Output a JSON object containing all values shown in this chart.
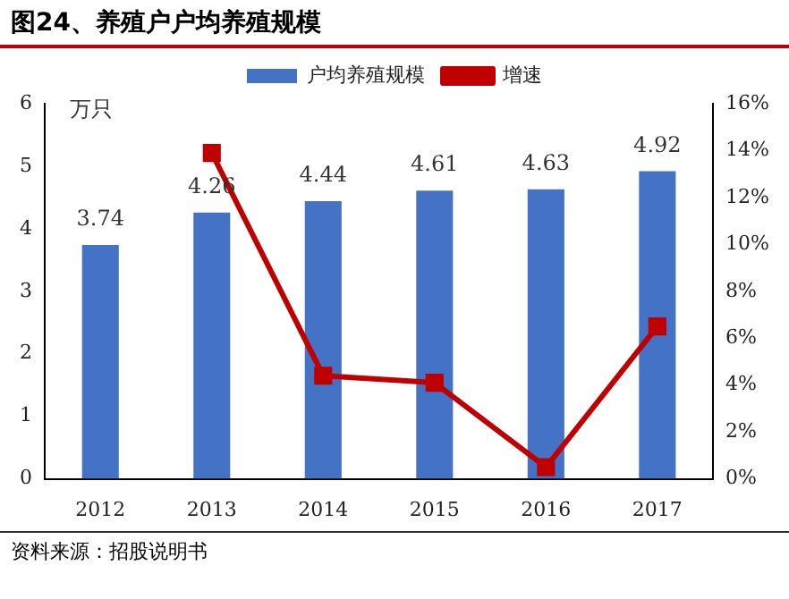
{
  "chart_data": {
    "type": "bar",
    "title": "图24、养殖户户均养殖规模",
    "ylabel": "万只",
    "annotations": [
      "资料来源：招股说明书"
    ],
    "categories": [
      "2012",
      "2013",
      "2014",
      "2015",
      "2016",
      "2017"
    ],
    "series": [
      {
        "name": "户均养殖规模",
        "color": "#4472c4",
        "values": [
          3.74,
          4.26,
          4.44,
          4.61,
          4.63,
          4.92
        ],
        "value_labels": [
          "3.74",
          "4.26",
          "4.44",
          "4.61",
          "4.63",
          "4.92"
        ]
      },
      {
        "name": "增速",
        "type": "line",
        "axis": "y2",
        "color": "#c00000",
        "marker": "square",
        "values": [
          null,
          13.9,
          4.4,
          4.1,
          0.5,
          6.5
        ]
      }
    ],
    "ylim": [
      0,
      6
    ],
    "yticks": [
      0,
      1,
      2,
      3,
      4,
      5,
      6
    ],
    "y2lim": [
      0,
      16
    ],
    "y2ticks": [
      {
        "value": 0,
        "label": "0%"
      },
      {
        "value": 2,
        "label": "2%"
      },
      {
        "value": 4,
        "label": "4%"
      },
      {
        "value": 6,
        "label": "6%"
      },
      {
        "value": 8,
        "label": "8%"
      },
      {
        "value": 10,
        "label": "10%"
      },
      {
        "value": 12,
        "label": "12%"
      },
      {
        "value": 14,
        "label": "14%"
      },
      {
        "value": 16,
        "label": "16%"
      }
    ],
    "grid": false,
    "legend": "top"
  }
}
